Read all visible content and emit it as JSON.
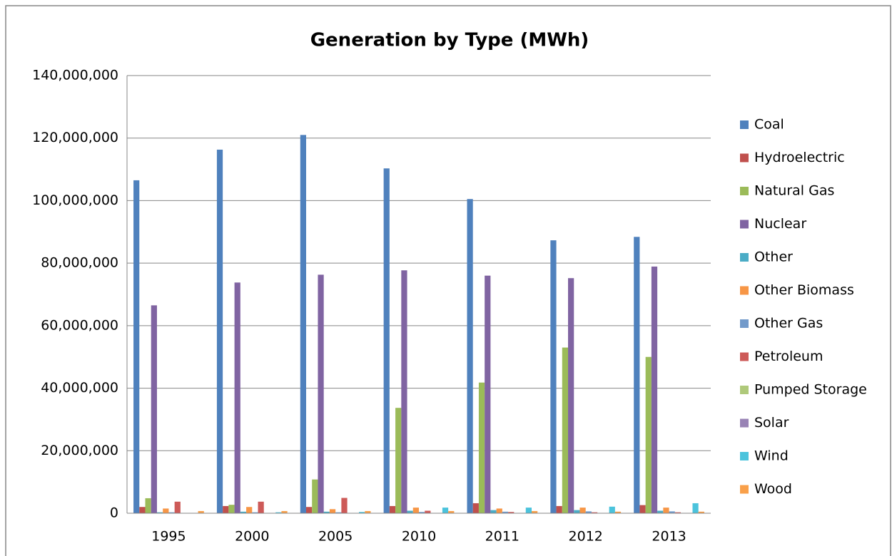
{
  "chart_data": {
    "type": "bar",
    "title": "Generation by Type (MWh)",
    "categories": [
      "1995",
      "2000",
      "2005",
      "2010",
      "2011",
      "2012",
      "2013"
    ],
    "series": [
      {
        "name": "Coal",
        "color": "#4F81BD",
        "values": [
          106500000,
          116300000,
          121000000,
          110300000,
          100500000,
          87300000,
          88400000
        ]
      },
      {
        "name": "Hydroelectric",
        "color": "#C0504D",
        "values": [
          2000000,
          2300000,
          2000000,
          2300000,
          3200000,
          2300000,
          2600000
        ]
      },
      {
        "name": "Natural Gas",
        "color": "#9BBB59",
        "values": [
          4800000,
          2700000,
          10800000,
          33700000,
          41800000,
          53000000,
          50000000
        ]
      },
      {
        "name": "Nuclear",
        "color": "#8064A2",
        "values": [
          66500000,
          73800000,
          76300000,
          77700000,
          76000000,
          75200000,
          78900000
        ]
      },
      {
        "name": "Other",
        "color": "#4BACC6",
        "values": [
          300000,
          500000,
          500000,
          800000,
          1000000,
          1000000,
          800000
        ]
      },
      {
        "name": "Other Biomass",
        "color": "#F79646",
        "values": [
          1500000,
          2000000,
          1300000,
          1800000,
          1500000,
          1800000,
          1800000
        ]
      },
      {
        "name": "Other Gas",
        "color": "#729ACA",
        "values": [
          300000,
          300000,
          300000,
          400000,
          500000,
          600000,
          600000
        ]
      },
      {
        "name": "Petroleum",
        "color": "#CD5A58",
        "values": [
          3700000,
          3700000,
          4900000,
          800000,
          400000,
          300000,
          300000
        ]
      },
      {
        "name": "Pumped Storage",
        "color": "#AFC97A",
        "values": [
          0,
          0,
          0,
          0,
          0,
          0,
          0
        ]
      },
      {
        "name": "Solar",
        "color": "#9983B5",
        "values": [
          0,
          0,
          0,
          0,
          100000,
          100000,
          100000
        ]
      },
      {
        "name": "Wind",
        "color": "#4BC3DC",
        "values": [
          0,
          300000,
          400000,
          1800000,
          1800000,
          2100000,
          3200000
        ]
      },
      {
        "name": "Wood",
        "color": "#F9A04A",
        "values": [
          700000,
          700000,
          700000,
          700000,
          700000,
          500000,
          500000
        ]
      }
    ],
    "ylim": [
      0,
      140000000
    ],
    "yticks": [
      0,
      {
        "value": 20000000,
        "label": "20,000,000"
      },
      {
        "value": 40000000,
        "label": "40,000,000"
      },
      {
        "value": 60000000,
        "label": "60,000,000"
      },
      {
        "value": 80000000,
        "label": "80,000,000"
      },
      {
        "value": 100000000,
        "label": "100,000,000"
      },
      {
        "value": 120000000,
        "label": "120,000,000"
      },
      {
        "value": 140000000,
        "label": "140,000,000"
      }
    ],
    "grid": true,
    "legend": "right"
  }
}
